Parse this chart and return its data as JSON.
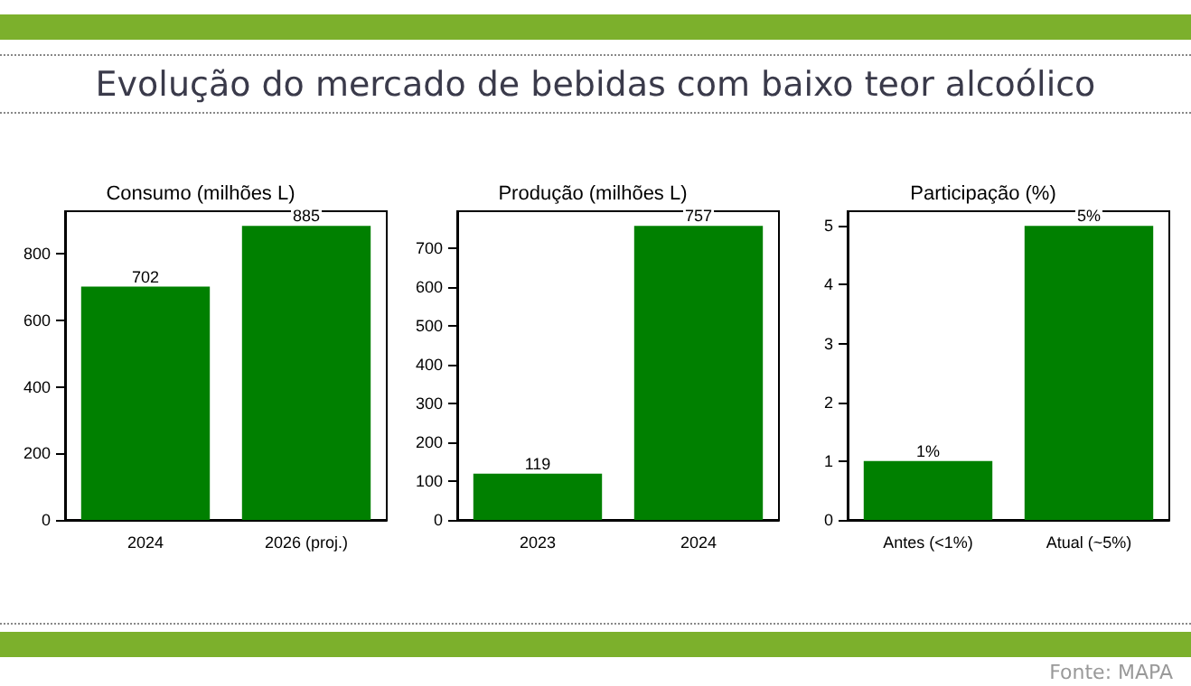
{
  "chart_data": [
    {
      "type": "bar",
      "title": "Consumo (milhões L)",
      "annotations": [
        "Evolução do mercado de bebidas com baixo teor alcoólico"
      ],
      "categories": [
        "2024",
        "2026 (proj.)"
      ],
      "values": [
        702,
        885
      ],
      "color": "#008000",
      "ylim": [
        0,
        929
      ],
      "yticks": [
        0,
        200,
        400,
        600,
        800
      ],
      "data_labels": true
    },
    {
      "type": "bar",
      "title": "Produção (milhões L)",
      "categories": [
        "2023",
        "2024"
      ],
      "values": [
        119,
        757
      ],
      "color": "#008000",
      "ylim": [
        0,
        795
      ],
      "yticks": [
        0,
        100,
        200,
        300,
        400,
        500,
        600,
        700
      ],
      "data_labels": true
    },
    {
      "type": "bar",
      "title": "Participação (%)",
      "annotations": [
        "Fonte: MAPA"
      ],
      "categories": [
        "Antes (<1%)",
        "Atual (~5%)"
      ],
      "values": [
        1,
        5
      ],
      "value_labels": [
        "1%",
        "5%"
      ],
      "color": "#008000",
      "ylim": [
        0,
        5.25
      ],
      "yticks": [
        0,
        1,
        2,
        3,
        4,
        5
      ]
    }
  ]
}
